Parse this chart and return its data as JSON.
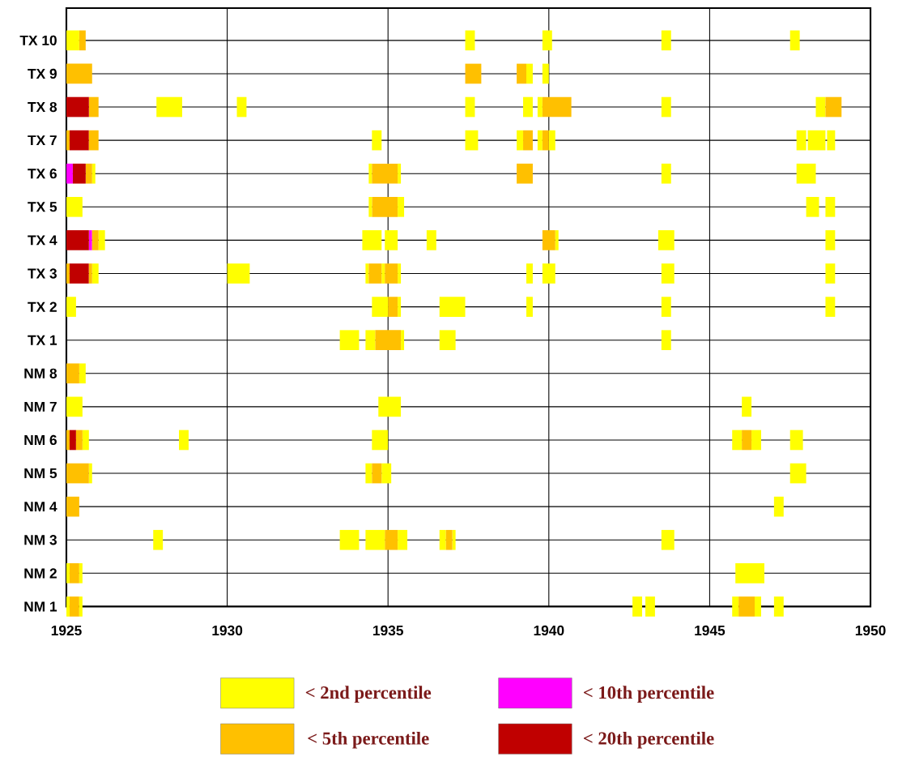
{
  "chart_data": {
    "type": "bar",
    "orientation": "horizontal",
    "categories": [
      "TX 10",
      "TX 9",
      "TX 8",
      "TX 7",
      "TX 6",
      "TX 5",
      "TX 4",
      "TX 3",
      "TX 2",
      "TX 1",
      "NM 8",
      "NM 7",
      "NM 6",
      "NM 5",
      "NM 4",
      "NM 3",
      "NM 2",
      "NM 1"
    ],
    "xlim": [
      1925,
      1950
    ],
    "xticks": [
      1925,
      1930,
      1935,
      1940,
      1945,
      1950
    ],
    "grid": true,
    "legend": "bottom",
    "series": [
      {
        "name": "< 2nd percentile",
        "color": "#ffff00",
        "base": [
          1925.0,
          1939.3,
          1927.8,
          1934.5,
          1925.8,
          1925.0,
          1926.0,
          1925.8,
          1925.0,
          1933.5,
          1925.4,
          1925.0,
          1925.5,
          1925.7,
          1947.0,
          1927.7,
          1925.0,
          1925.0
        ],
        "values": [
          0.4,
          0.2,
          0.8,
          0.3,
          0.1,
          0.5,
          0.2,
          0.2,
          0.3,
          0.6,
          0.2,
          0.5,
          0.2,
          0.1,
          0.3,
          0.3,
          0.1,
          0.1
        ]
      },
      {
        "name": "< 10th percentile",
        "color": "#ff00ff",
        "base": [
          null,
          null,
          null,
          null,
          1925.0,
          null,
          1925.7,
          null,
          null,
          null,
          null,
          null,
          null,
          null,
          null,
          null,
          null,
          null
        ],
        "values": [
          null,
          null,
          null,
          null,
          0.2,
          null,
          0.1,
          null,
          null,
          null,
          null,
          null,
          null,
          null,
          null,
          null,
          null,
          null
        ]
      },
      {
        "name": "< 5th percentile",
        "color": "#ffc000",
        "base": [
          1925.4,
          1925.0,
          1925.7,
          1925.0,
          1925.6,
          1934.5,
          1925.8,
          1925.0,
          1935.0,
          1934.6,
          1925.0,
          null,
          1925.0,
          1925.0,
          1925.0,
          1934.9,
          1925.1,
          1925.1
        ],
        "values": [
          0.2,
          0.8,
          0.3,
          0.1,
          0.2,
          0.8,
          0.2,
          0.1,
          0.3,
          0.8,
          0.4,
          null,
          0.1,
          0.7,
          0.4,
          0.4,
          0.3,
          0.3
        ]
      },
      {
        "name": "< 20th percentile",
        "color": "#c00000",
        "base": [
          null,
          null,
          1925.0,
          1925.1,
          1925.2,
          null,
          1925.0,
          1925.1,
          null,
          null,
          null,
          null,
          1925.1,
          null,
          null,
          null,
          null,
          null
        ],
        "values": [
          null,
          null,
          0.7,
          0.6,
          0.4,
          null,
          0.7,
          0.6,
          null,
          null,
          null,
          null,
          0.2,
          null,
          null,
          null,
          null,
          null
        ]
      },
      {
        "color": "#ffff00",
        "base": [
          1937.4,
          1939.8,
          1930.3,
          1937.4,
          1934.4,
          1934.4,
          1934.2,
          1930.0,
          1934.5,
          1934.3,
          null,
          1934.7,
          1928.5,
          1934.3,
          null,
          1933.5,
          1925.4,
          1925.4
        ],
        "values": [
          0.3,
          0.2,
          0.3,
          0.4,
          0.1,
          0.1,
          0.6,
          0.7,
          0.5,
          0.3,
          null,
          0.7,
          0.3,
          0.2,
          null,
          0.6,
          0.1,
          0.1
        ]
      },
      {
        "color": "#ffff00",
        "base": [
          1939.8,
          null,
          1937.4,
          1939.0,
          1935.3,
          1935.3,
          1934.9,
          1934.3,
          1935.3,
          1935.4,
          null,
          1946.0,
          1934.5,
          1934.8,
          null,
          1934.3,
          1945.8,
          1942.6
        ],
        "values": [
          0.3,
          null,
          0.3,
          0.2,
          0.1,
          0.2,
          0.4,
          0.1,
          0.1,
          0.1,
          null,
          0.3,
          0.5,
          0.3,
          null,
          0.6,
          0.9,
          0.3
        ]
      },
      {
        "color": "#ffff00",
        "base": [
          1943.5,
          null,
          1939.2,
          1939.65,
          1943.5,
          1948.0,
          1936.2,
          1934.8,
          1936.6,
          1936.6,
          null,
          null,
          1945.7,
          1947.5,
          null,
          1935.3,
          null,
          1943.0
        ],
        "values": [
          0.3,
          null,
          0.3,
          0.15,
          0.3,
          0.4,
          0.3,
          0.1,
          0.8,
          0.5,
          null,
          null,
          0.3,
          0.5,
          null,
          0.3,
          null,
          0.3
        ]
      },
      {
        "color": "#ffff00",
        "base": [
          1947.5,
          null,
          1939.65,
          1940.0,
          1947.7,
          1948.6,
          1940.2,
          1935.3,
          1939.3,
          1943.5,
          null,
          null,
          1946.3,
          null,
          null,
          1936.6,
          null,
          1945.7
        ],
        "values": [
          0.3,
          null,
          0.15,
          0.2,
          0.6,
          0.3,
          0.1,
          0.1,
          0.2,
          0.3,
          null,
          null,
          0.3,
          null,
          null,
          0.2,
          null,
          0.2
        ]
      },
      {
        "color": "#ffff00",
        "base": [
          null,
          null,
          1943.5,
          1947.7,
          null,
          null,
          1943.4,
          1939.3,
          1943.5,
          null,
          null,
          null,
          1947.5,
          null,
          null,
          1937.0,
          null,
          1946.4
        ],
        "values": [
          null,
          null,
          0.3,
          0.3,
          null,
          null,
          0.5,
          0.2,
          0.3,
          null,
          null,
          null,
          0.4,
          null,
          null,
          0.1,
          null,
          0.2
        ]
      },
      {
        "color": "#ffff00",
        "base": [
          null,
          null,
          1948.3,
          1948.05,
          null,
          null,
          1948.6,
          1939.8,
          1948.6,
          null,
          null,
          null,
          null,
          null,
          null,
          1943.5,
          null,
          1947.0
        ],
        "values": [
          null,
          null,
          0.3,
          0.55,
          null,
          null,
          0.3,
          0.4,
          0.3,
          null,
          null,
          null,
          null,
          null,
          null,
          0.4,
          null,
          0.3
        ]
      },
      {
        "color": "#ffff00",
        "base": [
          null,
          null,
          null,
          1948.65,
          null,
          null,
          null,
          1943.5,
          null,
          null,
          null,
          null,
          null,
          null,
          null,
          null,
          null,
          null
        ],
        "values": [
          null,
          null,
          null,
          0.25,
          null,
          null,
          null,
          0.4,
          null,
          null,
          null,
          null,
          null,
          null,
          null,
          null,
          null,
          null
        ]
      },
      {
        "color": "#ffff00",
        "base": [
          null,
          null,
          null,
          null,
          null,
          null,
          null,
          1948.6,
          null,
          null,
          null,
          null,
          null,
          null,
          null,
          null,
          null,
          null
        ],
        "values": [
          null,
          null,
          null,
          null,
          null,
          null,
          null,
          0.3,
          null,
          null,
          null,
          null,
          null,
          null,
          null,
          null,
          null,
          null
        ]
      },
      {
        "color": "#ffc000",
        "base": [
          null,
          1937.4,
          1939.8,
          1925.7,
          1934.5,
          null,
          1939.8,
          1925.7,
          null,
          null,
          null,
          null,
          1925.3,
          1934.5,
          null,
          1936.8,
          null,
          1945.9
        ],
        "values": [
          null,
          0.5,
          0.9,
          0.3,
          0.8,
          null,
          0.4,
          0.1,
          null,
          null,
          null,
          null,
          0.2,
          0.3,
          null,
          0.2,
          null,
          0.5
        ]
      },
      {
        "color": "#ffc000",
        "base": [
          null,
          1939.0,
          1948.6,
          1939.2,
          1939.0,
          null,
          null,
          1934.4,
          null,
          null,
          null,
          null,
          1946.0,
          null,
          null,
          null,
          null,
          null
        ],
        "values": [
          null,
          0.3,
          0.5,
          0.3,
          0.5,
          null,
          null,
          0.4,
          null,
          null,
          null,
          null,
          0.3,
          null,
          null,
          null,
          null,
          null
        ]
      },
      {
        "color": "#ffc000",
        "base": [
          null,
          null,
          null,
          1939.8,
          null,
          null,
          null,
          1934.9,
          null,
          null,
          null,
          null,
          null,
          null,
          null,
          null,
          null,
          null
        ],
        "values": [
          null,
          null,
          null,
          0.2,
          null,
          null,
          null,
          0.4,
          null,
          null,
          null,
          null,
          null,
          null,
          null,
          null,
          null,
          null
        ]
      }
    ]
  }
}
